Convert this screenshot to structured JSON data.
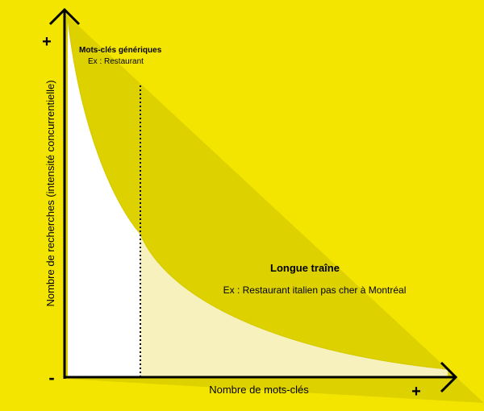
{
  "y_axis": {
    "label": "Nombre de recherches (intensité concurrentielle)",
    "plus": "+",
    "minus": "-"
  },
  "x_axis": {
    "label": "Nombre de mots-clés",
    "plus": "+"
  },
  "generic_keywords": {
    "title": "Mots-clés génériques",
    "example": "Ex : Restaurant"
  },
  "long_tail": {
    "title": "Longue traîne",
    "example": "Ex : Restaurant italien pas cher à Montréal"
  },
  "colors": {
    "background": "#f4e500",
    "band": "#ddd200",
    "long_tail_fill": "#f7f1bd",
    "head_fill": "#ffffff",
    "axis": "#000000"
  }
}
